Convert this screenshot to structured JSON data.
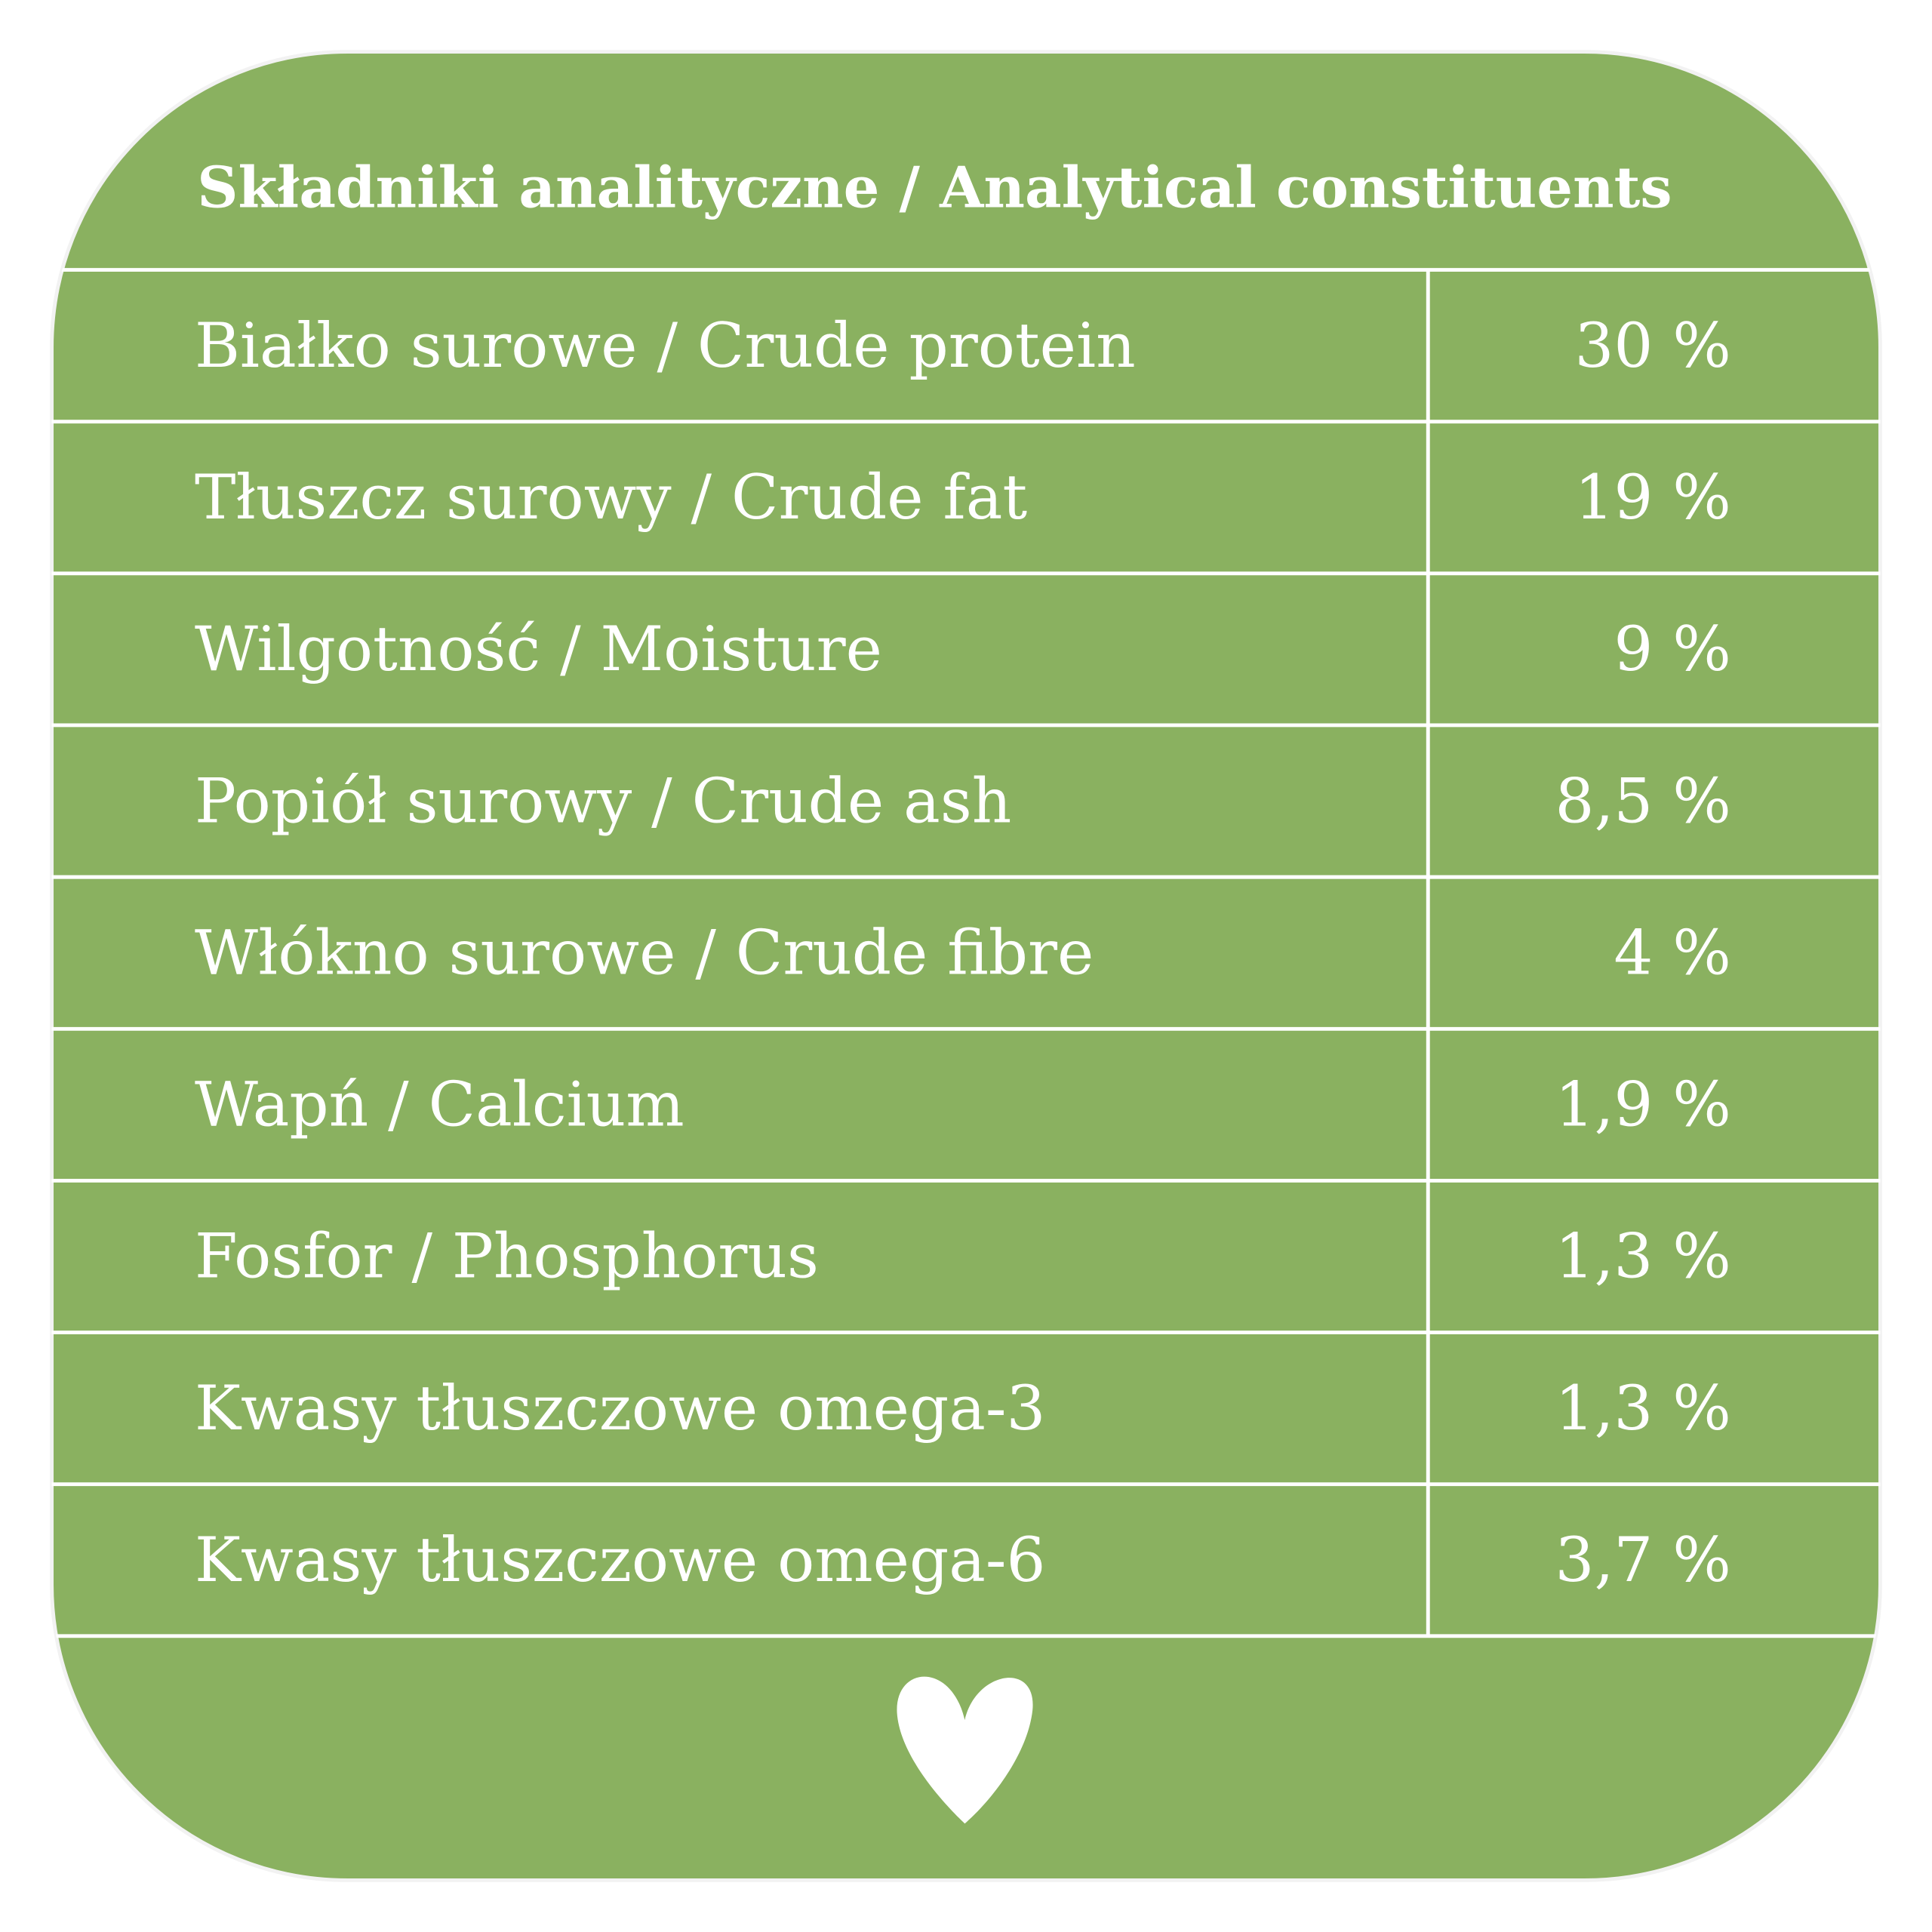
{
  "header": {
    "title": "Składniki analityczne / Analytical constituents"
  },
  "table": {
    "rows": [
      [
        "Białko surowe / Crude protein",
        "30 %"
      ],
      [
        "Tłuszcz surowy / Crude fat",
        "19 %"
      ],
      [
        "Wilgotność / Moisture",
        "9 %"
      ],
      [
        "Popiół surowy / Crude ash",
        "8,5 %"
      ],
      [
        "Włókno surowe / Crude fibre",
        "4 %"
      ],
      [
        "Wapń / Calcium",
        "1,9 %"
      ],
      [
        "Fosfor / Phosphorus",
        "1,3 %"
      ],
      [
        "Kwasy tłuszczowe omega-3",
        "1,3 %"
      ],
      [
        "Kwasy tłuszczowe omega-6",
        "3,7 %"
      ]
    ]
  }
}
